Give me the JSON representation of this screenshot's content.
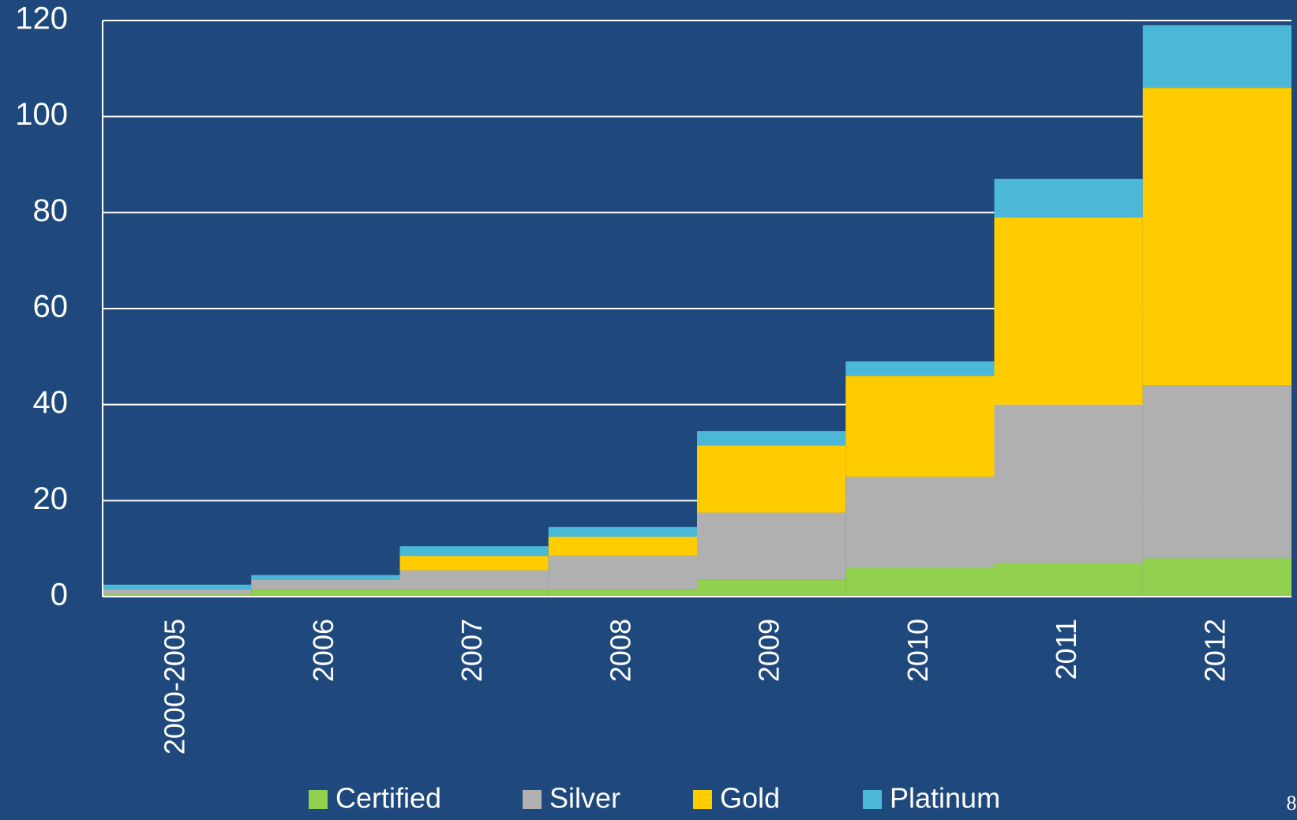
{
  "chart_data": {
    "type": "stacked_bar",
    "categories": [
      "2000-2005",
      "2006",
      "2007",
      "2008",
      "2009",
      "2010",
      "2011",
      "2012"
    ],
    "series": [
      {
        "name": "Certified",
        "color": "#92d050",
        "values": [
          0.5,
          1.5,
          1.5,
          1.5,
          3.5,
          6,
          7,
          8
        ]
      },
      {
        "name": "Silver",
        "color": "#b0b0b0",
        "values": [
          1,
          2,
          4,
          7,
          14,
          19,
          33,
          36
        ]
      },
      {
        "name": "Gold",
        "color": "#ffcc00",
        "values": [
          0,
          0,
          3,
          4,
          14,
          21,
          39,
          62
        ]
      },
      {
        "name": "Platinum",
        "color": "#4bb8d8",
        "values": [
          1,
          1,
          2,
          2,
          3,
          3,
          8,
          13
        ]
      }
    ],
    "ylim": [
      0,
      120
    ],
    "yticks": [
      0,
      20,
      40,
      60,
      80,
      100,
      120
    ],
    "grid": true,
    "legend": "bottom"
  },
  "page_number": "8"
}
